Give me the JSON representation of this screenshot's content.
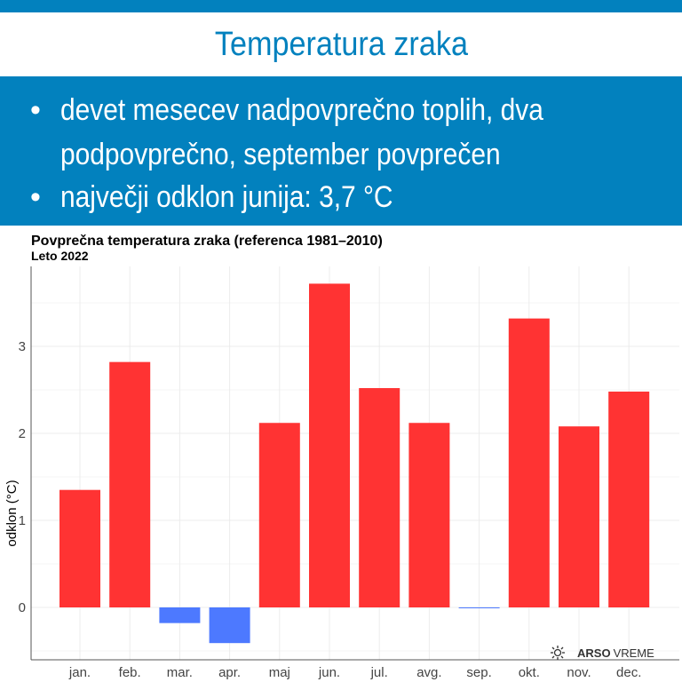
{
  "header": {
    "title": "Temperatura zraka"
  },
  "bullets": [
    "devet mesecev nadpovprečno toplih, dva",
    "podpovprečno, september povprečen",
    "največji odklon junija: 3,7 °C"
  ],
  "colors": {
    "brand": "#0281be",
    "positive": "#ff3333",
    "negative": "#4d79ff"
  },
  "logo": {
    "text_bold": "ARSO",
    "text": "VREME"
  },
  "chart_data": {
    "type": "bar",
    "title": "Povprečna temperatura zraka (referenca 1981–2010)",
    "subtitle": "Leto 2022",
    "xlabel": "",
    "ylabel": "odklon (°C)",
    "categories": [
      "jan.",
      "feb.",
      "mar.",
      "apr.",
      "maj",
      "jun.",
      "jul.",
      "avg.",
      "sep.",
      "okt.",
      "nov.",
      "dec."
    ],
    "values": [
      1.35,
      2.82,
      -0.18,
      -0.41,
      2.12,
      3.72,
      2.52,
      2.12,
      -0.01,
      3.32,
      2.08,
      2.48
    ],
    "ylim": [
      -0.6,
      3.95
    ],
    "yticks": [
      0,
      1,
      2,
      3
    ],
    "grid": true
  }
}
